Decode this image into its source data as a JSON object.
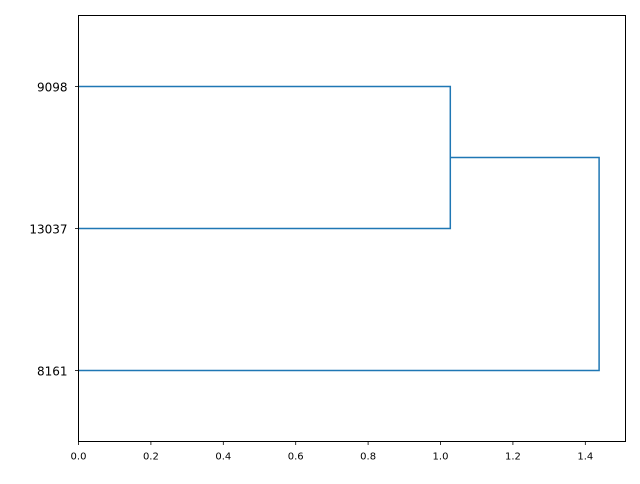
{
  "chart_data": {
    "type": "dendrogram",
    "orientation": "left-to-right",
    "title": "",
    "xlabel": "",
    "ylabel": "",
    "xlim": [
      0,
      1.511
    ],
    "ylim": [
      0,
      30
    ],
    "grid": false,
    "x_ticks": [
      "0.0",
      "0.2",
      "0.4",
      "0.6",
      "0.8",
      "1.0",
      "1.2",
      "1.4"
    ],
    "x_tick_values": [
      0,
      0.2,
      0.4,
      0.6,
      0.8,
      1.0,
      1.2,
      1.4
    ],
    "leaves": [
      "9098",
      "13037",
      "8161"
    ],
    "leaf_positions": [
      5,
      15,
      25
    ],
    "links": [
      {
        "left": "9098",
        "right": "13037",
        "distance": 1.027
      },
      {
        "left": "9098+13037",
        "right": "8161",
        "distance": 1.438
      }
    ],
    "link_paths": [
      {
        "x": [
          0,
          1.027,
          1.027,
          0
        ],
        "y": [
          5,
          5,
          15,
          15
        ]
      },
      {
        "x": [
          1.027,
          1.438,
          1.438,
          0
        ],
        "y": [
          10,
          10,
          25,
          25
        ]
      }
    ],
    "color": "#1f77b4"
  }
}
